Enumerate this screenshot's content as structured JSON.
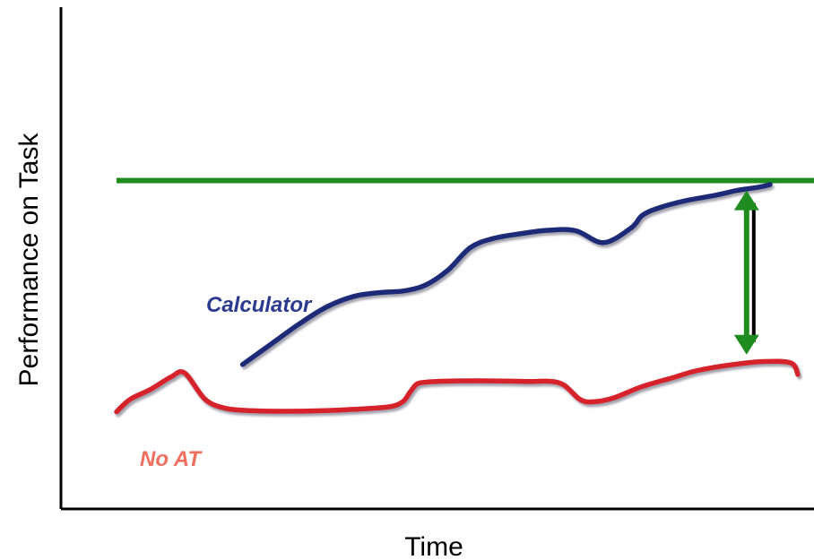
{
  "chart_data": {
    "type": "line",
    "title": "",
    "xlabel": "Time",
    "ylabel": "Performance on Task",
    "xlim": [
      0,
      100
    ],
    "ylim": [
      0,
      100
    ],
    "grid": false,
    "legend": "none",
    "reference_line": {
      "y": 65.5,
      "color": "#1f8c1f"
    },
    "series": [
      {
        "name": "Calculator",
        "color": "#1e2a78",
        "label_color": "#2b3a8f",
        "x": [
          0,
          5,
          10,
          15,
          20,
          25,
          29,
          33,
          37,
          41,
          45,
          50,
          55,
          60,
          65,
          70,
          72,
          75,
          80,
          85,
          89,
          92,
          94,
          95
        ],
        "y": [
          28.5,
          32.5,
          36.5,
          40.0,
          42.2,
          43.0,
          43.3,
          44.5,
          47.5,
          52.0,
          53.8,
          54.8,
          55.5,
          55.4,
          53.0,
          56.0,
          58.5,
          60.0,
          61.5,
          62.5,
          63.5,
          64.0,
          64.4,
          64.7
        ]
      },
      {
        "name": "No AT",
        "color": "#d6202a",
        "label_color": "#f07060",
        "x": [
          0,
          2,
          5,
          8,
          10,
          13,
          16,
          20,
          25,
          30,
          35,
          40,
          42,
          43,
          44,
          45,
          47,
          50,
          55,
          60,
          65,
          68,
          70,
          73,
          77,
          82,
          85,
          90,
          95,
          99,
          100
        ],
        "y": [
          19.0,
          21.5,
          23.5,
          26.0,
          26.8,
          21.5,
          19.7,
          19.2,
          19.1,
          19.2,
          19.5,
          20.0,
          21.0,
          22.8,
          24.5,
          24.9,
          25.1,
          25.2,
          25.2,
          25.1,
          24.8,
          21.5,
          21.0,
          21.8,
          24.0,
          26.0,
          27.2,
          28.4,
          29.1,
          28.8,
          26.5
        ]
      }
    ],
    "annotations": [
      {
        "type": "double-arrow",
        "x": 93,
        "y_from": 30.5,
        "y_to": 63.5,
        "color": "#1f8c1f"
      }
    ]
  },
  "labels": {
    "calculator": "Calculator",
    "no_at": "No AT"
  }
}
